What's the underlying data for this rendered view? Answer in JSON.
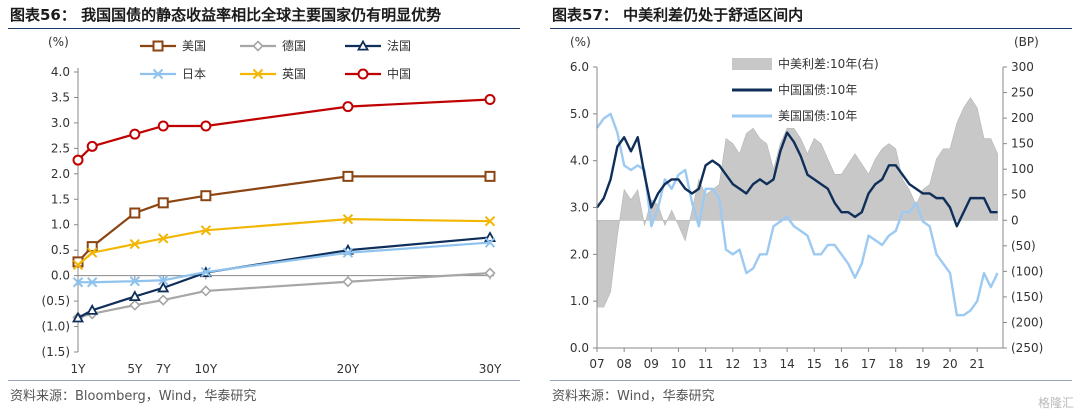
{
  "left": {
    "title": "图表56：  我国国债的静态收益率相比全球主要国家仍有明显优势",
    "source": "资料来源：Bloomberg，Wind，华泰研究"
  },
  "right": {
    "title": "图表57：  中美利差仍处于舒适区间内",
    "source": "资料来源：Wind，华泰研究"
  },
  "watermark": "格隆汇",
  "chart_data": [
    {
      "type": "line",
      "title": "我国国债的静态收益率相比全球主要国家仍有明显优势",
      "ylabel": "(%)",
      "ylim": [
        -1.5,
        4.0
      ],
      "yticks": [
        "4.0",
        "3.5",
        "3.0",
        "2.5",
        "2.0",
        "1.5",
        "1.0",
        "0.5",
        "0.0",
        "(0.5)",
        "(1.0)",
        "(1.5)"
      ],
      "x": [
        1,
        2,
        5,
        7,
        10,
        20,
        30
      ],
      "xticks": [
        "1Y",
        "5Y",
        "7Y",
        "10Y",
        "20Y",
        "30Y"
      ],
      "series": [
        {
          "name": "美国",
          "color": "#8B4513",
          "marker": "square",
          "x": [
            1,
            2,
            5,
            7,
            10,
            20,
            30
          ],
          "values": [
            0.27,
            0.57,
            1.23,
            1.43,
            1.57,
            1.95,
            1.95
          ]
        },
        {
          "name": "德国",
          "color": "#a6a6a6",
          "marker": "diamond",
          "x": [
            1,
            2,
            5,
            7,
            10,
            20,
            30
          ],
          "values": [
            -0.82,
            -0.75,
            -0.58,
            -0.48,
            -0.3,
            -0.12,
            0.05
          ]
        },
        {
          "name": "法国",
          "color": "#0f2f5a",
          "marker": "triangle",
          "x": [
            1,
            2,
            5,
            7,
            10,
            20,
            30
          ],
          "values": [
            -0.83,
            -0.68,
            -0.41,
            -0.24,
            0.06,
            0.5,
            0.75
          ]
        },
        {
          "name": "日本",
          "color": "#8fc3ee",
          "marker": "x",
          "x": [
            1,
            2,
            5,
            7,
            10,
            20,
            30
          ],
          "values": [
            -0.13,
            -0.13,
            -0.11,
            -0.09,
            0.07,
            0.45,
            0.65
          ]
        },
        {
          "name": "英国",
          "color": "#f2b705",
          "marker": "x",
          "x": [
            1,
            2,
            5,
            7,
            10,
            20,
            30
          ],
          "values": [
            0.21,
            0.45,
            0.62,
            0.73,
            0.89,
            1.11,
            1.07
          ]
        },
        {
          "name": "中国",
          "color": "#c00000",
          "marker": "circle",
          "x": [
            1,
            2,
            5,
            7,
            10,
            20,
            30
          ],
          "values": [
            2.27,
            2.54,
            2.78,
            2.94,
            2.94,
            3.32,
            3.46
          ]
        }
      ]
    },
    {
      "type": "line",
      "title": "中美利差仍处于舒适区间内",
      "ylabel": "(%)",
      "y2label": "(BP)",
      "ylim": [
        0,
        6.0
      ],
      "y2lim": [
        -250,
        300
      ],
      "yticks": [
        "6.0",
        "5.0",
        "4.0",
        "3.0",
        "2.0",
        "1.0",
        "0.0"
      ],
      "y2ticks": [
        "300",
        "250",
        "200",
        "150",
        "100",
        "50",
        "0",
        "(50)",
        "(100)",
        "(150)",
        "(200)",
        "(250)"
      ],
      "xticks": [
        "07",
        "08",
        "09",
        "10",
        "11",
        "12",
        "13",
        "14",
        "15",
        "16",
        "17",
        "18",
        "19",
        "20",
        "21"
      ],
      "x": [
        2007.0,
        2007.25,
        2007.5,
        2007.75,
        2008.0,
        2008.25,
        2008.5,
        2008.75,
        2009.0,
        2009.25,
        2009.5,
        2009.75,
        2010.0,
        2010.25,
        2010.5,
        2010.75,
        2011.0,
        2011.25,
        2011.5,
        2011.75,
        2012.0,
        2012.25,
        2012.5,
        2012.75,
        2013.0,
        2013.25,
        2013.5,
        2013.75,
        2014.0,
        2014.25,
        2014.5,
        2014.75,
        2015.0,
        2015.25,
        2015.5,
        2015.75,
        2016.0,
        2016.25,
        2016.5,
        2016.75,
        2017.0,
        2017.25,
        2017.5,
        2017.75,
        2018.0,
        2018.25,
        2018.5,
        2018.75,
        2019.0,
        2019.25,
        2019.5,
        2019.75,
        2020.0,
        2020.25,
        2020.5,
        2020.75,
        2021.0,
        2021.25,
        2021.5,
        2021.75
      ],
      "series": [
        {
          "name": "中国国债:10年",
          "axis": "left",
          "color": "#0f2f5a",
          "values": [
            3.0,
            3.2,
            3.6,
            4.3,
            4.5,
            4.2,
            4.5,
            3.7,
            3.0,
            3.3,
            3.5,
            3.6,
            3.6,
            3.4,
            3.3,
            3.4,
            3.9,
            4.0,
            3.9,
            3.7,
            3.5,
            3.4,
            3.3,
            3.5,
            3.6,
            3.5,
            3.6,
            4.2,
            4.6,
            4.4,
            4.1,
            3.7,
            3.6,
            3.5,
            3.4,
            3.1,
            2.9,
            2.9,
            2.8,
            2.9,
            3.3,
            3.5,
            3.6,
            3.9,
            3.9,
            3.7,
            3.5,
            3.4,
            3.3,
            3.3,
            3.2,
            3.2,
            3.0,
            2.6,
            2.9,
            3.2,
            3.2,
            3.2,
            2.9,
            2.9
          ]
        },
        {
          "name": "美国国债:10年",
          "axis": "left",
          "color": "#9dcaf2",
          "values": [
            4.7,
            4.9,
            5.0,
            4.6,
            3.9,
            3.8,
            3.9,
            3.8,
            2.6,
            3.0,
            3.6,
            3.4,
            3.7,
            3.8,
            3.1,
            2.6,
            3.4,
            3.4,
            3.2,
            2.1,
            2.0,
            2.1,
            1.6,
            1.7,
            2.0,
            2.0,
            2.6,
            2.7,
            2.8,
            2.6,
            2.5,
            2.4,
            2.0,
            2.0,
            2.2,
            2.2,
            2.0,
            1.8,
            1.5,
            1.8,
            2.4,
            2.3,
            2.2,
            2.4,
            2.5,
            2.9,
            2.9,
            3.1,
            2.7,
            2.6,
            2.0,
            1.8,
            1.6,
            0.7,
            0.7,
            0.8,
            1.0,
            1.6,
            1.3,
            1.6
          ]
        },
        {
          "name": "中美利差:10年(右)",
          "axis": "right",
          "type": "area",
          "color": "#c8c8c8",
          "values": [
            -170,
            -170,
            -140,
            -30,
            60,
            40,
            60,
            -10,
            40,
            30,
            -10,
            20,
            -10,
            -40,
            20,
            80,
            50,
            60,
            70,
            160,
            150,
            130,
            170,
            180,
            160,
            150,
            100,
            150,
            180,
            180,
            160,
            130,
            160,
            150,
            120,
            90,
            90,
            110,
            130,
            110,
            90,
            120,
            140,
            150,
            140,
            80,
            60,
            30,
            60,
            70,
            120,
            140,
            140,
            190,
            220,
            240,
            220,
            160,
            160,
            130
          ]
        }
      ]
    }
  ]
}
